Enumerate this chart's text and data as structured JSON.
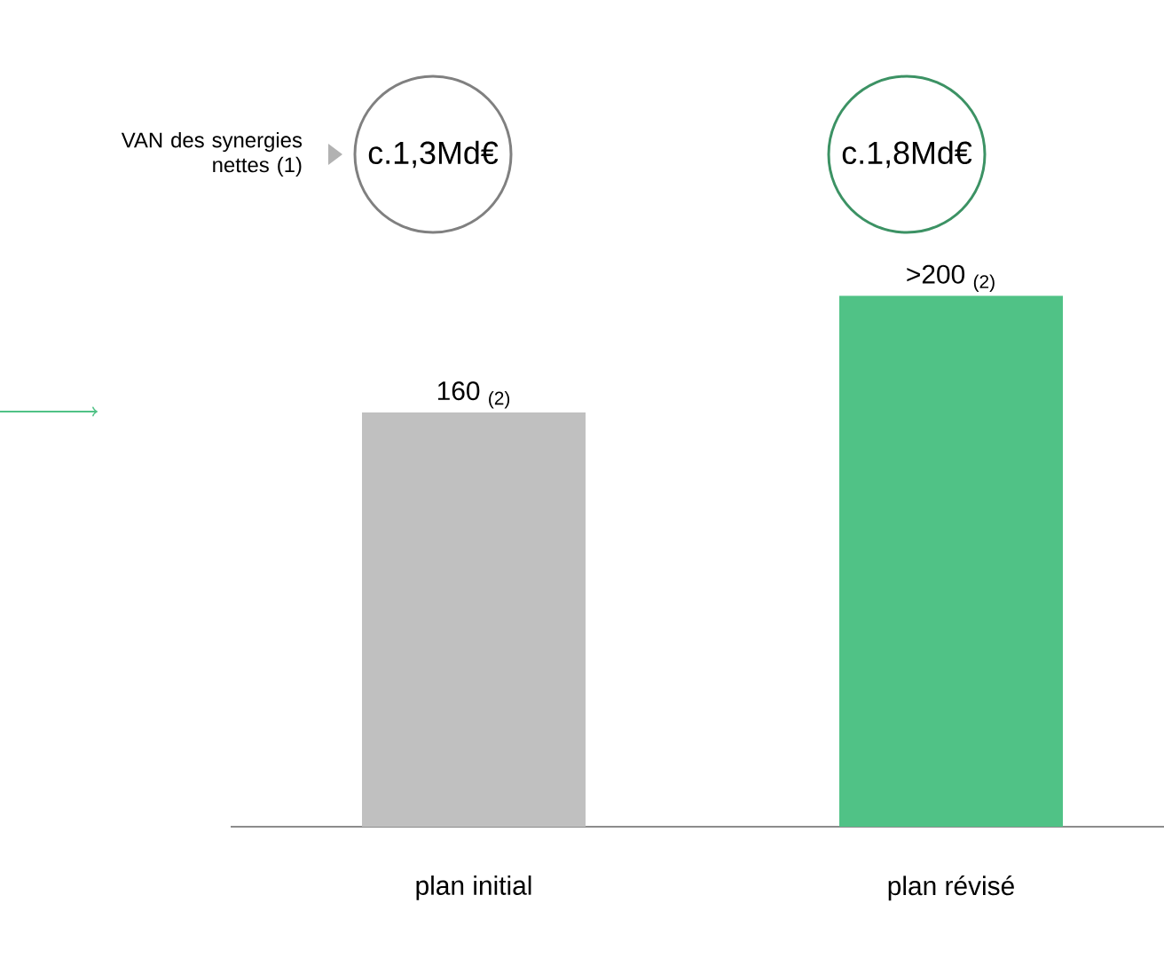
{
  "chart_data": {
    "type": "bar",
    "categories": [
      "plan initial",
      "plan révisé"
    ],
    "values": [
      160,
      205
    ],
    "colors": [
      "#c0c0c0",
      "#50c286"
    ],
    "value_labels": [
      "160 $_{(2)}$",
      ">200 $_{(2)}$"
    ],
    "annotations": [
      "VAN des synergies nettes (1)",
      "c.1,3Md€",
      "c.1,8Md€"
    ]
  }
}
